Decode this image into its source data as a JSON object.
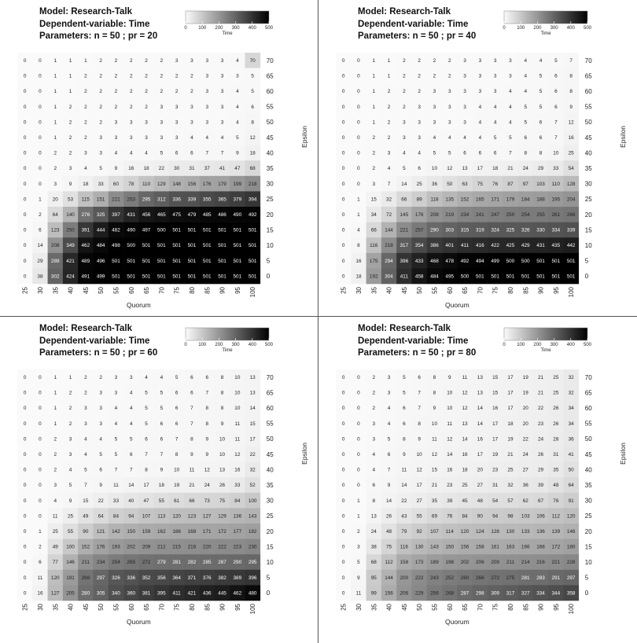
{
  "chart_data": [
    {
      "type": "heatmap",
      "model": "Model: Research-Talk",
      "dependent": "Dependent-variable: Time",
      "params": "Parameters: n = 50 ; pr = 20",
      "xlabel": "Quorum",
      "ylabel": "Epsilon",
      "legend_title": "Time",
      "legend_ticks": [
        "0",
        "100",
        "200",
        "300",
        "400",
        "500"
      ],
      "value_range": [
        0,
        500
      ],
      "x": [
        "25",
        "30",
        "35",
        "40",
        "45",
        "50",
        "55",
        "60",
        "65",
        "70",
        "75",
        "80",
        "85",
        "90",
        "95",
        "100"
      ],
      "y": [
        "70",
        "65",
        "60",
        "55",
        "50",
        "45",
        "40",
        "35",
        "30",
        "25",
        "20",
        "15",
        "10",
        "5",
        "0"
      ],
      "values": [
        [
          0,
          0,
          1,
          1,
          1,
          2,
          2,
          2,
          2,
          2,
          3,
          3,
          3,
          3,
          4,
          70
        ],
        [
          0,
          0,
          1,
          1,
          2,
          2,
          2,
          2,
          2,
          2,
          2,
          2,
          3,
          3,
          3,
          5
        ],
        [
          0,
          0,
          1,
          1,
          2,
          2,
          2,
          2,
          2,
          2,
          2,
          2,
          3,
          3,
          4,
          5
        ],
        [
          0,
          0,
          1,
          2,
          2,
          2,
          2,
          2,
          2,
          3,
          3,
          3,
          3,
          3,
          4,
          6
        ],
        [
          0,
          0,
          1,
          2,
          2,
          2,
          3,
          3,
          3,
          3,
          3,
          3,
          3,
          3,
          4,
          8
        ],
        [
          0,
          0,
          1,
          2,
          2,
          3,
          3,
          3,
          3,
          3,
          3,
          4,
          4,
          4,
          5,
          12
        ],
        [
          0,
          0,
          2,
          2,
          3,
          3,
          4,
          4,
          4,
          5,
          6,
          6,
          7,
          7,
          9,
          18
        ],
        [
          0,
          0,
          2,
          3,
          4,
          5,
          9,
          16,
          18,
          22,
          30,
          31,
          37,
          41,
          47,
          68
        ],
        [
          0,
          0,
          3,
          9,
          18,
          33,
          60,
          78,
          110,
          129,
          148,
          156,
          176,
          179,
          199,
          218
        ],
        [
          0,
          1,
          20,
          53,
          115,
          151,
          221,
          253,
          295,
          312,
          336,
          339,
          355,
          365,
          379,
          394
        ],
        [
          0,
          2,
          64,
          140,
          276,
          325,
          397,
          431,
          456,
          465,
          475,
          479,
          485,
          486,
          490,
          492
        ],
        [
          0,
          6,
          123,
          250,
          391,
          444,
          482,
          490,
          497,
          500,
          501,
          501,
          501,
          501,
          501,
          501
        ],
        [
          0,
          14,
          208,
          349,
          462,
          484,
          498,
          500,
          501,
          501,
          501,
          501,
          501,
          501,
          501,
          501
        ],
        [
          0,
          29,
          289,
          421,
          489,
          496,
          501,
          501,
          501,
          501,
          501,
          501,
          501,
          501,
          501,
          501
        ],
        [
          0,
          38,
          302,
          424,
          491,
          499,
          501,
          501,
          501,
          501,
          501,
          501,
          501,
          501,
          501,
          501
        ]
      ]
    },
    {
      "type": "heatmap",
      "model": "Model: Research-Talk",
      "dependent": "Dependent-variable: Time",
      "params": "Parameters: n = 50 ; pr = 40",
      "xlabel": "Quorum",
      "ylabel": "Epsilon",
      "legend_title": "Time",
      "legend_ticks": [
        "0",
        "100",
        "200",
        "300",
        "400",
        "500"
      ],
      "value_range": [
        0,
        500
      ],
      "x": [
        "25",
        "30",
        "35",
        "40",
        "45",
        "50",
        "55",
        "60",
        "65",
        "70",
        "75",
        "80",
        "85",
        "90",
        "95",
        "100"
      ],
      "y": [
        "70",
        "65",
        "60",
        "55",
        "50",
        "45",
        "40",
        "35",
        "30",
        "25",
        "20",
        "15",
        "10",
        "5",
        "0"
      ],
      "values": [
        [
          0,
          0,
          1,
          1,
          2,
          2,
          2,
          2,
          3,
          3,
          3,
          3,
          4,
          4,
          5,
          7
        ],
        [
          0,
          0,
          1,
          1,
          2,
          2,
          2,
          2,
          3,
          3,
          3,
          3,
          4,
          5,
          6,
          8
        ],
        [
          0,
          0,
          1,
          2,
          2,
          2,
          3,
          3,
          3,
          3,
          3,
          4,
          4,
          5,
          6,
          8
        ],
        [
          0,
          0,
          1,
          2,
          2,
          3,
          3,
          3,
          3,
          4,
          4,
          4,
          5,
          5,
          6,
          9
        ],
        [
          0,
          0,
          1,
          2,
          3,
          3,
          3,
          3,
          3,
          4,
          4,
          4,
          5,
          6,
          7,
          12
        ],
        [
          0,
          0,
          2,
          2,
          3,
          3,
          4,
          4,
          4,
          4,
          5,
          5,
          6,
          6,
          7,
          16
        ],
        [
          0,
          0,
          2,
          3,
          4,
          4,
          5,
          5,
          6,
          6,
          6,
          7,
          8,
          8,
          10,
          25
        ],
        [
          0,
          0,
          2,
          4,
          5,
          6,
          10,
          12,
          13,
          17,
          18,
          21,
          24,
          29,
          33,
          54
        ],
        [
          0,
          0,
          3,
          7,
          14,
          25,
          36,
          50,
          63,
          75,
          76,
          87,
          97,
          103,
          110,
          128
        ],
        [
          0,
          1,
          15,
          32,
          66,
          89,
          118,
          135,
          152,
          165,
          171,
          179,
          184,
          188,
          195,
          204
        ],
        [
          0,
          1,
          34,
          72,
          145,
          176,
          208,
          219,
          234,
          241,
          247,
          250,
          254,
          255,
          261,
          266
        ],
        [
          0,
          4,
          66,
          144,
          221,
          257,
          290,
          303,
          315,
          319,
          324,
          325,
          326,
          330,
          334,
          339
        ],
        [
          0,
          8,
          116,
          218,
          317,
          354,
          386,
          401,
          411,
          416,
          422,
          425,
          429,
          431,
          435,
          442
        ],
        [
          0,
          16,
          175,
          294,
          396,
          433,
          468,
          478,
          492,
          494,
          499,
          500,
          500,
          501,
          501,
          501
        ],
        [
          0,
          18,
          192,
          304,
          411,
          458,
          484,
          495,
          500,
          501,
          501,
          501,
          501,
          501,
          501,
          501
        ]
      ]
    },
    {
      "type": "heatmap",
      "model": "Model: Research-Talk",
      "dependent": "Dependent-variable: Time",
      "params": "Parameters: n = 50 ; pr = 60",
      "xlabel": "Quorum",
      "ylabel": "Epsilon",
      "legend_title": "Time",
      "legend_ticks": [
        "0",
        "100",
        "200",
        "300",
        "400",
        "500"
      ],
      "value_range": [
        0,
        500
      ],
      "x": [
        "25",
        "30",
        "35",
        "40",
        "45",
        "50",
        "55",
        "60",
        "65",
        "70",
        "75",
        "80",
        "85",
        "90",
        "95",
        "100"
      ],
      "y": [
        "70",
        "65",
        "60",
        "55",
        "50",
        "45",
        "40",
        "35",
        "30",
        "25",
        "20",
        "15",
        "10",
        "5",
        "0"
      ],
      "values": [
        [
          0,
          0,
          1,
          1,
          2,
          2,
          3,
          3,
          4,
          4,
          5,
          6,
          6,
          8,
          10,
          13
        ],
        [
          0,
          0,
          1,
          2,
          2,
          3,
          3,
          4,
          5,
          5,
          6,
          6,
          7,
          8,
          10,
          13
        ],
        [
          0,
          0,
          1,
          2,
          3,
          3,
          4,
          4,
          5,
          5,
          6,
          7,
          8,
          8,
          10,
          14
        ],
        [
          0,
          0,
          1,
          2,
          3,
          3,
          4,
          4,
          5,
          6,
          6,
          7,
          8,
          9,
          11,
          15
        ],
        [
          0,
          0,
          2,
          3,
          4,
          4,
          5,
          5,
          6,
          6,
          7,
          8,
          9,
          10,
          11,
          17
        ],
        [
          0,
          0,
          2,
          3,
          4,
          5,
          5,
          6,
          7,
          7,
          8,
          9,
          9,
          10,
          12,
          22
        ],
        [
          0,
          0,
          2,
          4,
          5,
          6,
          7,
          7,
          8,
          9,
          10,
          11,
          12,
          13,
          16,
          32
        ],
        [
          0,
          0,
          3,
          5,
          7,
          9,
          11,
          14,
          17,
          18,
          19,
          21,
          24,
          26,
          33,
          52
        ],
        [
          0,
          0,
          4,
          9,
          15,
          22,
          33,
          40,
          47,
          55,
          61,
          66,
          73,
          75,
          84,
          100
        ],
        [
          0,
          0,
          11,
          25,
          49,
          64,
          84,
          94,
          107,
          113,
          120,
          123,
          127,
          129,
          136,
          143
        ],
        [
          0,
          1,
          25,
          55,
          90,
          121,
          142,
          150,
          159,
          162,
          166,
          168,
          171,
          172,
          177,
          182
        ],
        [
          0,
          2,
          49,
          100,
          152,
          176,
          193,
          202,
          209,
          212,
          215,
          216,
          220,
          222,
          223,
          230
        ],
        [
          0,
          6,
          77,
          146,
          211,
          234,
          254,
          265,
          272,
          279,
          281,
          282,
          285,
          287,
          290,
          295
        ],
        [
          0,
          11,
          120,
          191,
          268,
          297,
          326,
          336,
          352,
          356,
          364,
          371,
          376,
          382,
          389,
          396
        ],
        [
          0,
          16,
          127,
          205,
          280,
          305,
          340,
          360,
          381,
          395,
          411,
          421,
          436,
          445,
          462,
          480
        ]
      ]
    },
    {
      "type": "heatmap",
      "model": "Model: Research-Talk",
      "dependent": "Dependent-variable: Time",
      "params": "Parameters: n = 50 ; pr = 80",
      "xlabel": "Quorum",
      "ylabel": "Epsilon",
      "legend_title": "Time",
      "legend_ticks": [
        "0",
        "100",
        "200",
        "300",
        "400",
        "500"
      ],
      "value_range": [
        0,
        500
      ],
      "x": [
        "25",
        "30",
        "35",
        "40",
        "45",
        "50",
        "55",
        "60",
        "65",
        "70",
        "75",
        "80",
        "85",
        "90",
        "95",
        "100"
      ],
      "y": [
        "70",
        "65",
        "60",
        "55",
        "50",
        "45",
        "40",
        "35",
        "30",
        "25",
        "20",
        "15",
        "10",
        "5",
        "0"
      ],
      "values": [
        [
          0,
          0,
          2,
          3,
          5,
          6,
          8,
          9,
          11,
          13,
          15,
          17,
          19,
          21,
          25,
          32
        ],
        [
          0,
          0,
          2,
          3,
          5,
          7,
          8,
          10,
          12,
          13,
          15,
          17,
          19,
          21,
          25,
          32
        ],
        [
          0,
          0,
          2,
          4,
          6,
          7,
          9,
          10,
          12,
          14,
          16,
          17,
          20,
          22,
          26,
          34
        ],
        [
          0,
          0,
          3,
          4,
          6,
          8,
          10,
          11,
          13,
          14,
          17,
          18,
          20,
          23,
          26,
          34
        ],
        [
          0,
          0,
          3,
          5,
          8,
          9,
          11,
          12,
          14,
          16,
          17,
          19,
          22,
          24,
          28,
          36
        ],
        [
          0,
          0,
          4,
          6,
          9,
          10,
          12,
          14,
          16,
          17,
          19,
          21,
          24,
          26,
          31,
          41
        ],
        [
          0,
          0,
          4,
          7,
          11,
          12,
          15,
          16,
          18,
          20,
          23,
          25,
          27,
          29,
          35,
          50
        ],
        [
          0,
          0,
          6,
          9,
          14,
          17,
          21,
          23,
          25,
          27,
          31,
          32,
          36,
          39,
          48,
          64
        ],
        [
          0,
          1,
          8,
          14,
          22,
          27,
          35,
          39,
          45,
          48,
          54,
          57,
          62,
          67,
          76,
          91
        ],
        [
          0,
          1,
          13,
          26,
          43,
          55,
          69,
          76,
          84,
          90,
          94,
          98,
          103,
          106,
          112,
          120
        ],
        [
          0,
          2,
          24,
          48,
          79,
          92,
          107,
          114,
          120,
          124,
          128,
          130,
          133,
          136,
          139,
          146
        ],
        [
          0,
          3,
          38,
          75,
          116,
          130,
          143,
          150,
          156,
          158,
          161,
          163,
          166,
          168,
          172,
          180
        ],
        [
          0,
          5,
          68,
          112,
          158,
          173,
          189,
          198,
          202,
          206,
          209,
          211,
          214,
          216,
          221,
          228
        ],
        [
          0,
          9,
          95,
          144,
          200,
          222,
          243,
          252,
          260,
          266,
          272,
          275,
          281,
          283,
          291,
          297
        ],
        [
          0,
          11,
          99,
          156,
          206,
          229,
          256,
          268,
          287,
          298,
          309,
          317,
          327,
          334,
          344,
          358
        ]
      ]
    }
  ]
}
